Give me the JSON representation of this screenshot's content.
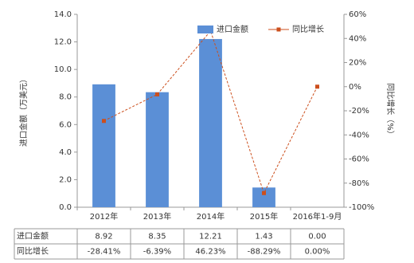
{
  "chart_data": {
    "type": "bar-line",
    "categories": [
      "2012年",
      "2013年",
      "2014年",
      "2015年",
      "2016年1-9月"
    ],
    "series": [
      {
        "name": "进口金额",
        "type": "bar",
        "color": "#5b8fd6",
        "values": [
          8.92,
          8.35,
          12.21,
          1.43,
          0.0
        ],
        "value_labels": [
          "8.92",
          "8.35",
          "12.21",
          "1.43",
          "0.00"
        ]
      },
      {
        "name": "同比增长",
        "type": "line",
        "axis": "y2",
        "color": "#cc4f1d",
        "values": [
          -28.41,
          -6.39,
          46.23,
          -88.29,
          0.0
        ],
        "value_labels": [
          "-28.41%",
          "-6.39%",
          "46.23%",
          "-88.29%",
          "0.00%"
        ]
      }
    ],
    "ylabel": "进口金额（万美元）",
    "y2label": "同比增长（%）",
    "ylim": [
      0,
      14
    ],
    "yticks": [
      {
        "value": 0,
        "label": "0.0"
      },
      {
        "value": 2,
        "label": "2.0"
      },
      {
        "value": 4,
        "label": "4.0"
      },
      {
        "value": 6,
        "label": "6.0"
      },
      {
        "value": 8,
        "label": "8.0"
      },
      {
        "value": 10,
        "label": "10.0"
      },
      {
        "value": 12,
        "label": "12.0"
      },
      {
        "value": 14,
        "label": "14.0"
      }
    ],
    "y2lim": [
      -100,
      60
    ],
    "y2ticks": [
      {
        "value": -100,
        "label": "-100%"
      },
      {
        "value": -80,
        "label": "-80%"
      },
      {
        "value": -60,
        "label": "-60%"
      },
      {
        "value": -40,
        "label": "-40%"
      },
      {
        "value": -20,
        "label": "-20%"
      },
      {
        "value": 0,
        "label": "0%"
      },
      {
        "value": 20,
        "label": "20%"
      },
      {
        "value": 40,
        "label": "40%"
      },
      {
        "value": 60,
        "label": "60%"
      }
    ]
  }
}
